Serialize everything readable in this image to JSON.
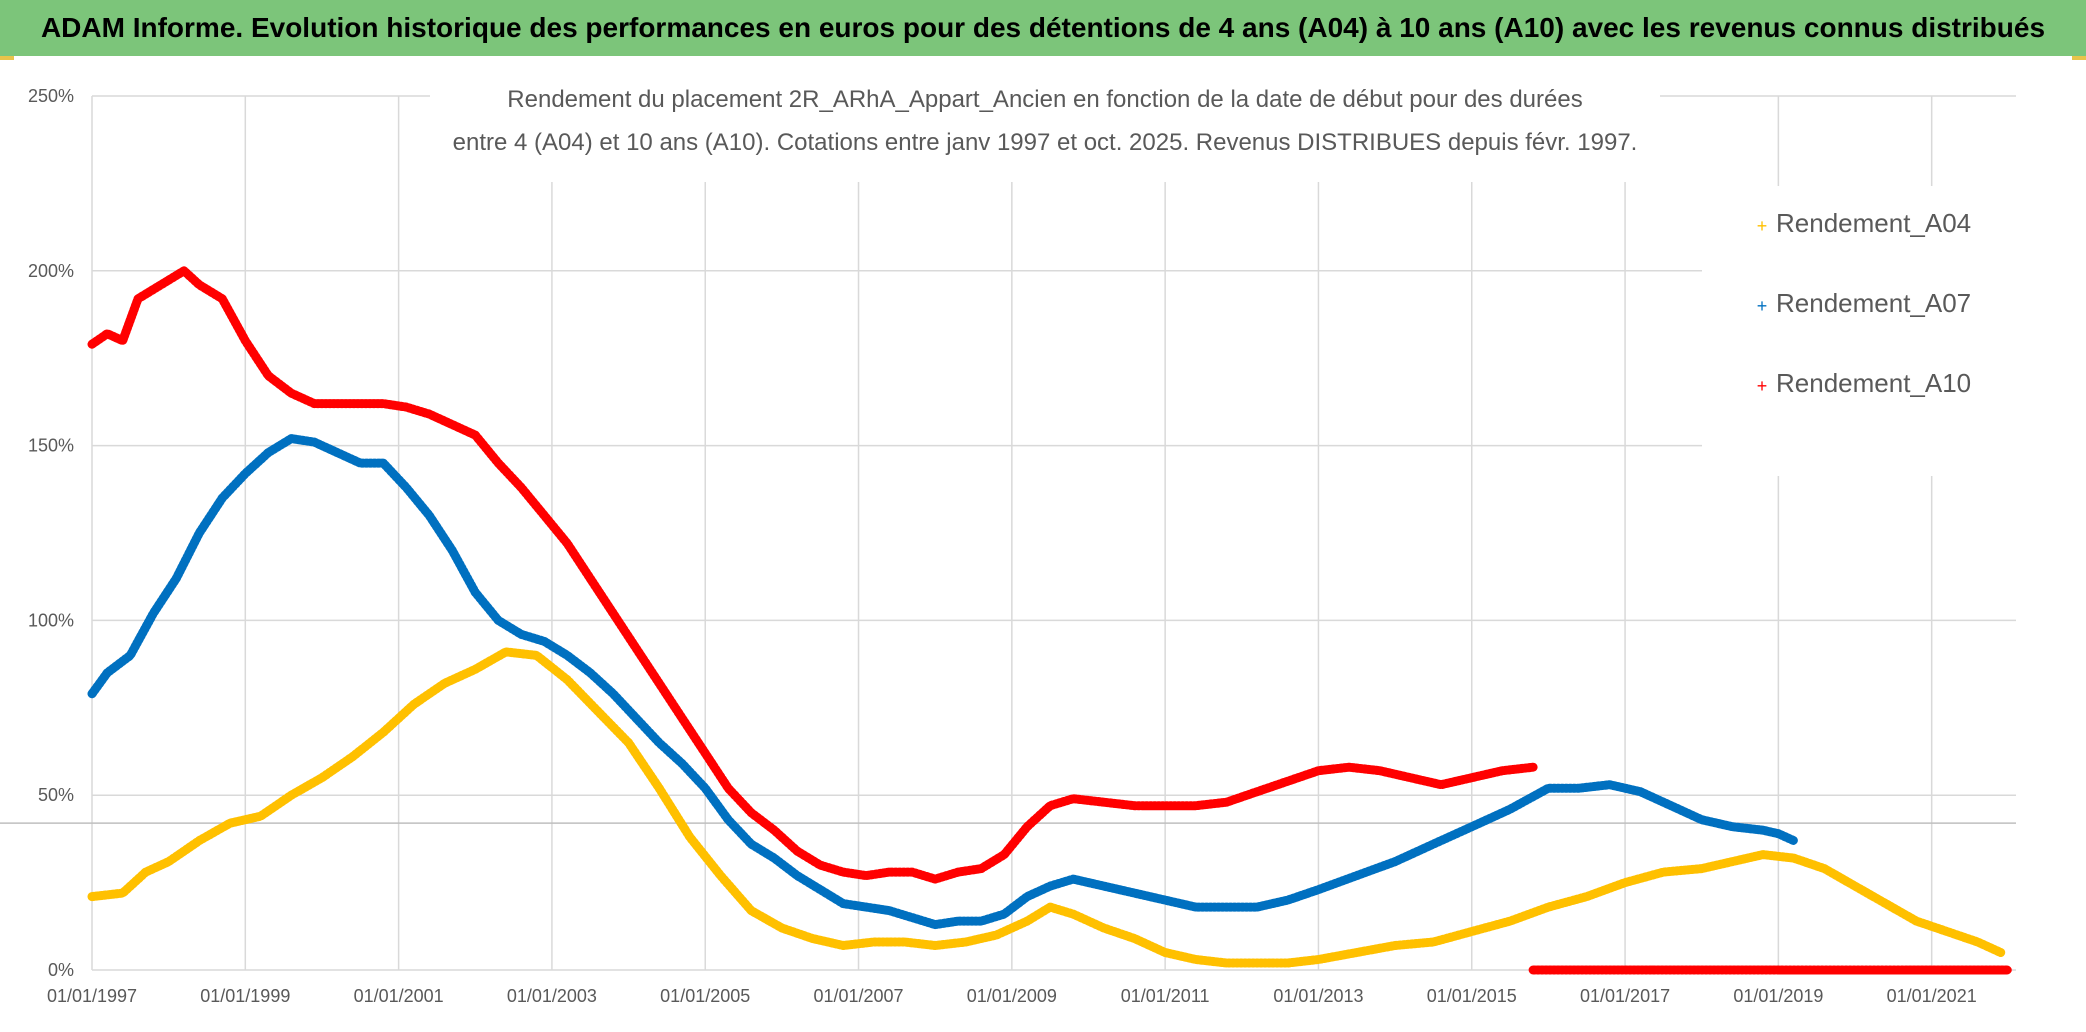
{
  "banner": {
    "title": "ADAM Informe. Evolution historique des performances en euros pour des détentions de 4 ans (A04) à 10 ans (A10) avec les revenus connus distribués"
  },
  "colors": {
    "banner": "#7cc57a",
    "A04": "#ffc000",
    "A07": "#0070c0",
    "A10": "#ff0000",
    "grid": "#d9d9d9",
    "text": "#595959"
  },
  "chart_data": {
    "type": "line",
    "title_lines": [
      "Rendement du placement 2R_ARhA_Appart_Ancien en fonction de la date de début pour des durées",
      "entre 4 (A04) et 10 ans (A10). Cotations entre janv 1997 et oct. 2025. Revenus DISTRIBUES depuis févr. 1997."
    ],
    "xlabel": "",
    "ylabel": "",
    "x_ticks": [
      "01/01/1997",
      "01/01/1999",
      "01/01/2001",
      "01/01/2003",
      "01/01/2005",
      "01/01/2007",
      "01/01/2009",
      "01/01/2011",
      "01/01/2013",
      "01/01/2015",
      "01/01/2017",
      "01/01/2019",
      "01/01/2021"
    ],
    "x_tick_years": [
      1997,
      1999,
      2001,
      2003,
      2005,
      2007,
      2009,
      2011,
      2013,
      2015,
      2017,
      2019,
      2021
    ],
    "xlim": [
      1997,
      2022.1
    ],
    "y_ticks": [
      "0%",
      "50%",
      "100%",
      "150%",
      "200%",
      "250%"
    ],
    "y_tick_values": [
      0,
      50,
      100,
      150,
      200,
      250
    ],
    "ylim": [
      0,
      250
    ],
    "grid": true,
    "legend_position": "top-right",
    "legend": [
      "Rendement_A04",
      "Rendement_A07",
      "Rendement_A10"
    ],
    "series": [
      {
        "name": "Rendement_A04",
        "color_key": "A04",
        "x": [
          1997.0,
          1997.4,
          1997.7,
          1998.0,
          1998.4,
          1998.8,
          1999.2,
          1999.6,
          2000.0,
          2000.4,
          2000.8,
          2001.2,
          2001.6,
          2002.0,
          2002.4,
          2002.8,
          2003.2,
          2003.6,
          2004.0,
          2004.4,
          2004.8,
          2005.2,
          2005.6,
          2006.0,
          2006.4,
          2006.8,
          2007.2,
          2007.6,
          2008.0,
          2008.4,
          2008.8,
          2009.2,
          2009.5,
          2009.8,
          2010.2,
          2010.6,
          2011.0,
          2011.4,
          2011.8,
          2012.2,
          2012.6,
          2013.0,
          2013.5,
          2014.0,
          2014.5,
          2015.0,
          2015.5,
          2016.0,
          2016.5,
          2017.0,
          2017.5,
          2018.0,
          2018.4,
          2018.8,
          2019.2,
          2019.6,
          2020.0,
          2020.4,
          2020.8,
          2021.2,
          2021.6,
          2021.9
        ],
        "values": [
          21,
          22,
          28,
          31,
          37,
          42,
          44,
          50,
          55,
          61,
          68,
          76,
          82,
          86,
          91,
          90,
          83,
          74,
          65,
          52,
          38,
          27,
          17,
          12,
          9,
          7,
          8,
          8,
          7,
          8,
          10,
          14,
          18,
          16,
          12,
          9,
          5,
          3,
          2,
          2,
          2,
          3,
          5,
          7,
          8,
          11,
          14,
          18,
          21,
          25,
          28,
          29,
          31,
          33,
          32,
          29,
          24,
          19,
          14,
          11,
          8,
          5
        ]
      },
      {
        "name": "Rendement_A07",
        "color_key": "A07",
        "x": [
          1997.0,
          1997.2,
          1997.5,
          1997.8,
          1998.1,
          1998.4,
          1998.7,
          1999.0,
          1999.3,
          1999.6,
          1999.9,
          2000.2,
          2000.5,
          2000.8,
          2001.1,
          2001.4,
          2001.7,
          2002.0,
          2002.3,
          2002.6,
          2002.9,
          2003.2,
          2003.5,
          2003.8,
          2004.1,
          2004.4,
          2004.7,
          2005.0,
          2005.3,
          2005.6,
          2005.9,
          2006.2,
          2006.5,
          2006.8,
          2007.1,
          2007.4,
          2007.7,
          2008.0,
          2008.3,
          2008.6,
          2008.9,
          2009.2,
          2009.5,
          2009.8,
          2010.2,
          2010.6,
          2011.0,
          2011.4,
          2011.8,
          2012.2,
          2012.6,
          2013.0,
          2013.5,
          2014.0,
          2014.5,
          2015.0,
          2015.5,
          2016.0,
          2016.4,
          2016.8,
          2017.2,
          2017.6,
          2018.0,
          2018.4,
          2018.8,
          2019.0,
          2019.2
        ],
        "values": [
          79,
          85,
          90,
          102,
          112,
          125,
          135,
          142,
          148,
          152,
          151,
          148,
          145,
          145,
          138,
          130,
          120,
          108,
          100,
          96,
          94,
          90,
          85,
          79,
          72,
          65,
          59,
          52,
          43,
          36,
          32,
          27,
          23,
          19,
          18,
          17,
          15,
          13,
          14,
          14,
          16,
          21,
          24,
          26,
          24,
          22,
          20,
          18,
          18,
          18,
          20,
          23,
          27,
          31,
          36,
          41,
          46,
          52,
          52,
          53,
          51,
          47,
          43,
          41,
          40,
          39,
          37
        ]
      },
      {
        "name": "Rendement_A10",
        "color_key": "A10",
        "x": [
          1997.0,
          1997.2,
          1997.4,
          1997.6,
          1997.9,
          1998.2,
          1998.4,
          1998.7,
          1999.0,
          1999.3,
          1999.6,
          1999.9,
          2000.2,
          2000.5,
          2000.8,
          2001.1,
          2001.4,
          2001.7,
          2002.0,
          2002.3,
          2002.6,
          2002.9,
          2003.2,
          2003.5,
          2003.8,
          2004.1,
          2004.4,
          2004.7,
          2005.0,
          2005.3,
          2005.6,
          2005.9,
          2006.2,
          2006.5,
          2006.8,
          2007.1,
          2007.4,
          2007.7,
          2008.0,
          2008.3,
          2008.6,
          2008.9,
          2009.2,
          2009.5,
          2009.8,
          2010.2,
          2010.6,
          2011.0,
          2011.4,
          2011.8,
          2012.2,
          2012.6,
          2013.0,
          2013.4,
          2013.8,
          2014.2,
          2014.6,
          2015.0,
          2015.4,
          2015.8
        ],
        "values": [
          179,
          182,
          180,
          192,
          196,
          200,
          196,
          192,
          180,
          170,
          165,
          162,
          162,
          162,
          162,
          161,
          159,
          156,
          153,
          145,
          138,
          130,
          122,
          112,
          102,
          92,
          82,
          72,
          62,
          52,
          45,
          40,
          34,
          30,
          28,
          27,
          28,
          28,
          26,
          28,
          29,
          33,
          41,
          47,
          49,
          48,
          47,
          47,
          47,
          48,
          51,
          54,
          57,
          58,
          57,
          55,
          53,
          55,
          57,
          58
        ]
      },
      {
        "name": "Rendement_A10 (zero)",
        "color_key": "A10",
        "x": [
          2015.8,
          2022.0
        ],
        "values": [
          0,
          0
        ]
      }
    ]
  }
}
